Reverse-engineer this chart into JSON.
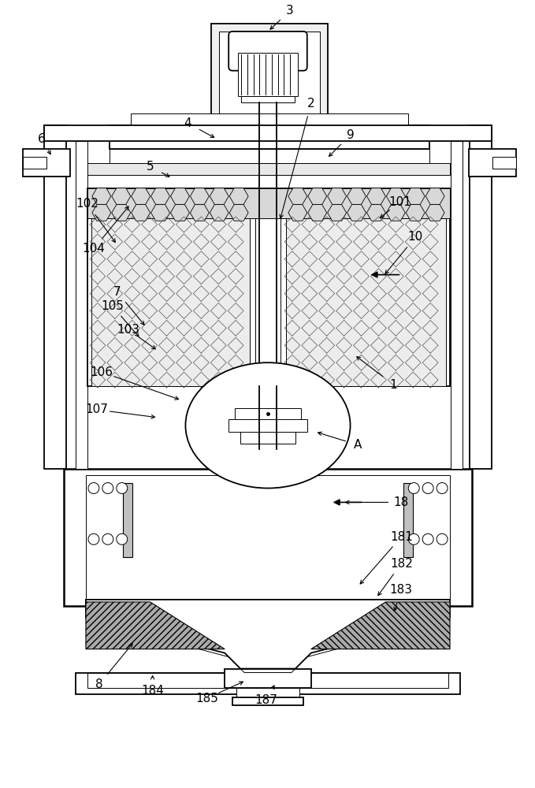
{
  "bg_color": "#ffffff",
  "lc": "#000000",
  "figsize": [
    6.79,
    10.0
  ],
  "dpi": 100,
  "lw_main": 1.3,
  "lw_thin": 0.7,
  "lw_thick": 1.8
}
